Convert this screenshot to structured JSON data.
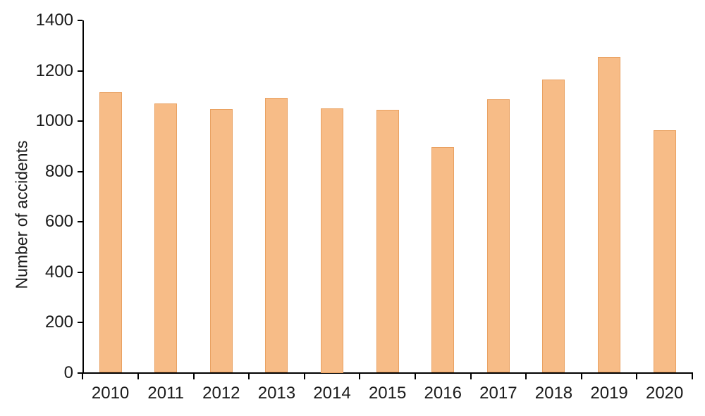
{
  "chart_data": {
    "type": "bar",
    "title": "",
    "categories": [
      "2010",
      "2011",
      "2012",
      "2013",
      "2014",
      "2015",
      "2016",
      "2017",
      "2018",
      "2019",
      "2020"
    ],
    "values": [
      1115,
      1070,
      1048,
      1092,
      1050,
      1044,
      897,
      1086,
      1165,
      1255,
      963
    ],
    "xlabel": "",
    "ylabel": "Number of accidents",
    "ylim": [
      0,
      1400
    ],
    "yticks": [
      0,
      200,
      400,
      600,
      800,
      1000,
      1200,
      1400
    ],
    "grid": false,
    "legend": "none",
    "colors": {
      "bar_fill": "#F7BC87",
      "bar_border": "#E9A161",
      "axis": "#000000",
      "text": "#1a1a1a",
      "background": "#ffffff"
    }
  }
}
